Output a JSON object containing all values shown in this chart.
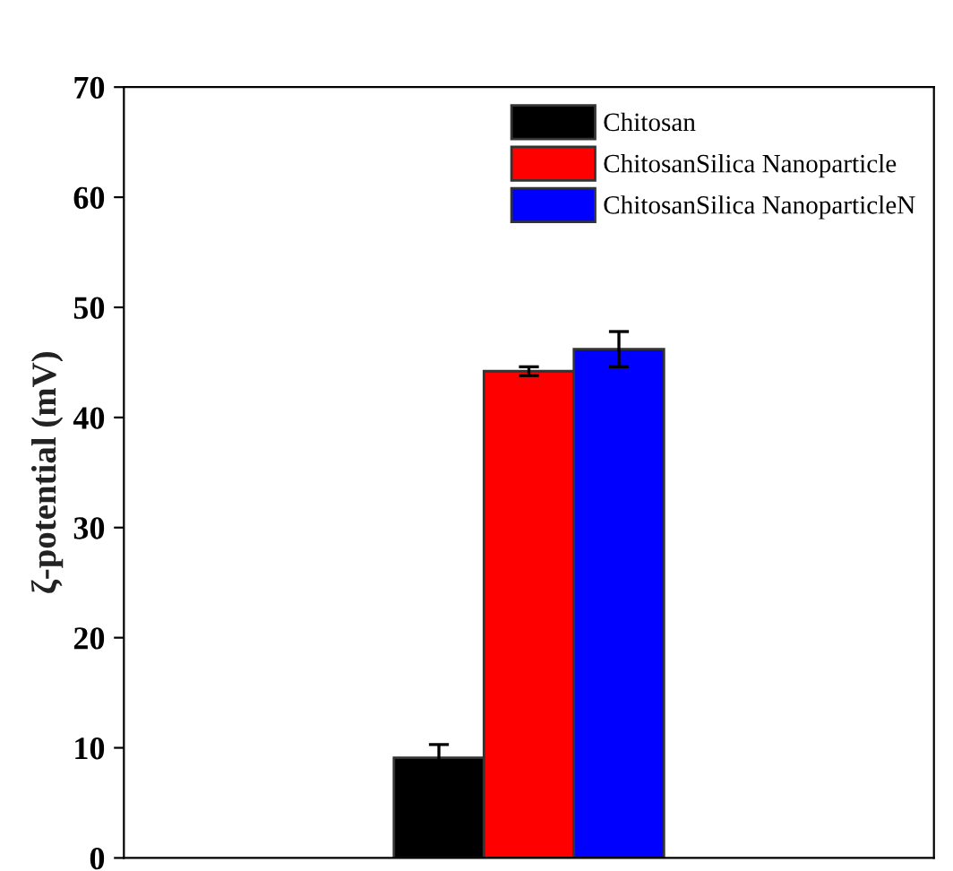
{
  "chart_data": {
    "type": "bar",
    "ylabel": "ζ-potential (mV)",
    "categories": [
      null
    ],
    "series": [
      {
        "name": "Chitosan",
        "color": "#000000",
        "values": [
          9.1
        ],
        "errors": [
          1.2
        ]
      },
      {
        "name": "ChitosanSilica Nanoparticle",
        "color": "#ff0000",
        "values": [
          44.2
        ],
        "errors": [
          0.4
        ]
      },
      {
        "name": "ChitosanSilica NanoparticleN",
        "color": "#0000ff",
        "values": [
          46.2
        ],
        "errors": [
          1.6
        ]
      }
    ],
    "ylim": [
      0,
      70
    ],
    "yticks": [
      0,
      10,
      20,
      30,
      40,
      50,
      60,
      70
    ],
    "grid": false,
    "legend": "top right",
    "tick_labels": "y"
  }
}
